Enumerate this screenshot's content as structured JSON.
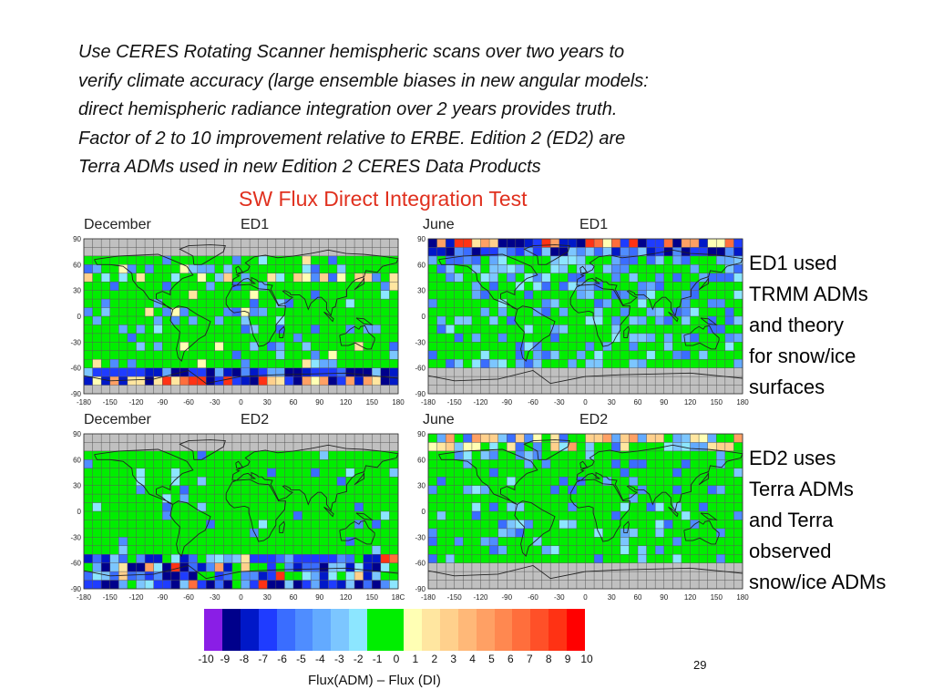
{
  "intro_lines": [
    "Use CERES Rotating Scanner hemispheric scans over two years to",
    "verify climate accuracy (large ensemble biases in new angular models:",
    "direct hemispheric radiance integration over 2 years provides truth.",
    "Factor of 2 to 10 improvement relative to ERBE.  Edition 2 (ED2) are",
    "Terra ADMs used in new Edition 2 CERES Data Products"
  ],
  "figure_title": "SW Flux Direct Integration Test",
  "colors": {
    "title": "#e0301e",
    "land_outline": "#222222",
    "grid": "#5a5a5a",
    "missing": "#c0c0c0",
    "colorbar": [
      "#8a1ee6",
      "#00008b",
      "#0018c8",
      "#1f3cff",
      "#3a6dff",
      "#4f8dff",
      "#63aaff",
      "#7cc6ff",
      "#8ce6ff",
      "#00ee00",
      "#00ee00",
      "#ffffb4",
      "#ffe6a0",
      "#ffd08c",
      "#ffb878",
      "#ffa064",
      "#ff8850",
      "#ff6e3c",
      "#ff5028",
      "#ff3214",
      "#ff0000"
    ]
  },
  "panels": [
    {
      "month": "December",
      "edition": "ED1"
    },
    {
      "month": "June",
      "edition": "ED1"
    },
    {
      "month": "December",
      "edition": "ED2"
    },
    {
      "month": "June",
      "edition": "ED2"
    }
  ],
  "axes": {
    "lat_ticks": [
      "90",
      "60",
      "30",
      "0",
      "-30",
      "-60",
      "-90"
    ],
    "lon_ticks": [
      "-180",
      "-150",
      "-120",
      "-90",
      "-60",
      "-30",
      "0",
      "30",
      "60",
      "90",
      "120",
      "150",
      "180"
    ],
    "lon_ticks_bottom_left_last": "18C"
  },
  "notes": {
    "ed1": [
      "ED1 used",
      "TRMM ADMs",
      "and theory",
      "for snow/ice",
      "surfaces"
    ],
    "ed2": [
      "ED2 uses",
      "Terra ADMs",
      "and Terra",
      "observed",
      "snow/ice ADMs"
    ]
  },
  "colorbar": {
    "ticks": [
      "-10",
      "-9",
      "-8",
      "-7",
      "-6",
      "-5",
      "-4",
      "-3",
      "-2",
      "-1",
      "0",
      "1",
      "2",
      "3",
      "4",
      "5",
      "6",
      "7",
      "8",
      "9",
      "10"
    ],
    "label": "Flux(ADM) – Flux (DI)"
  },
  "page_number": "29"
}
